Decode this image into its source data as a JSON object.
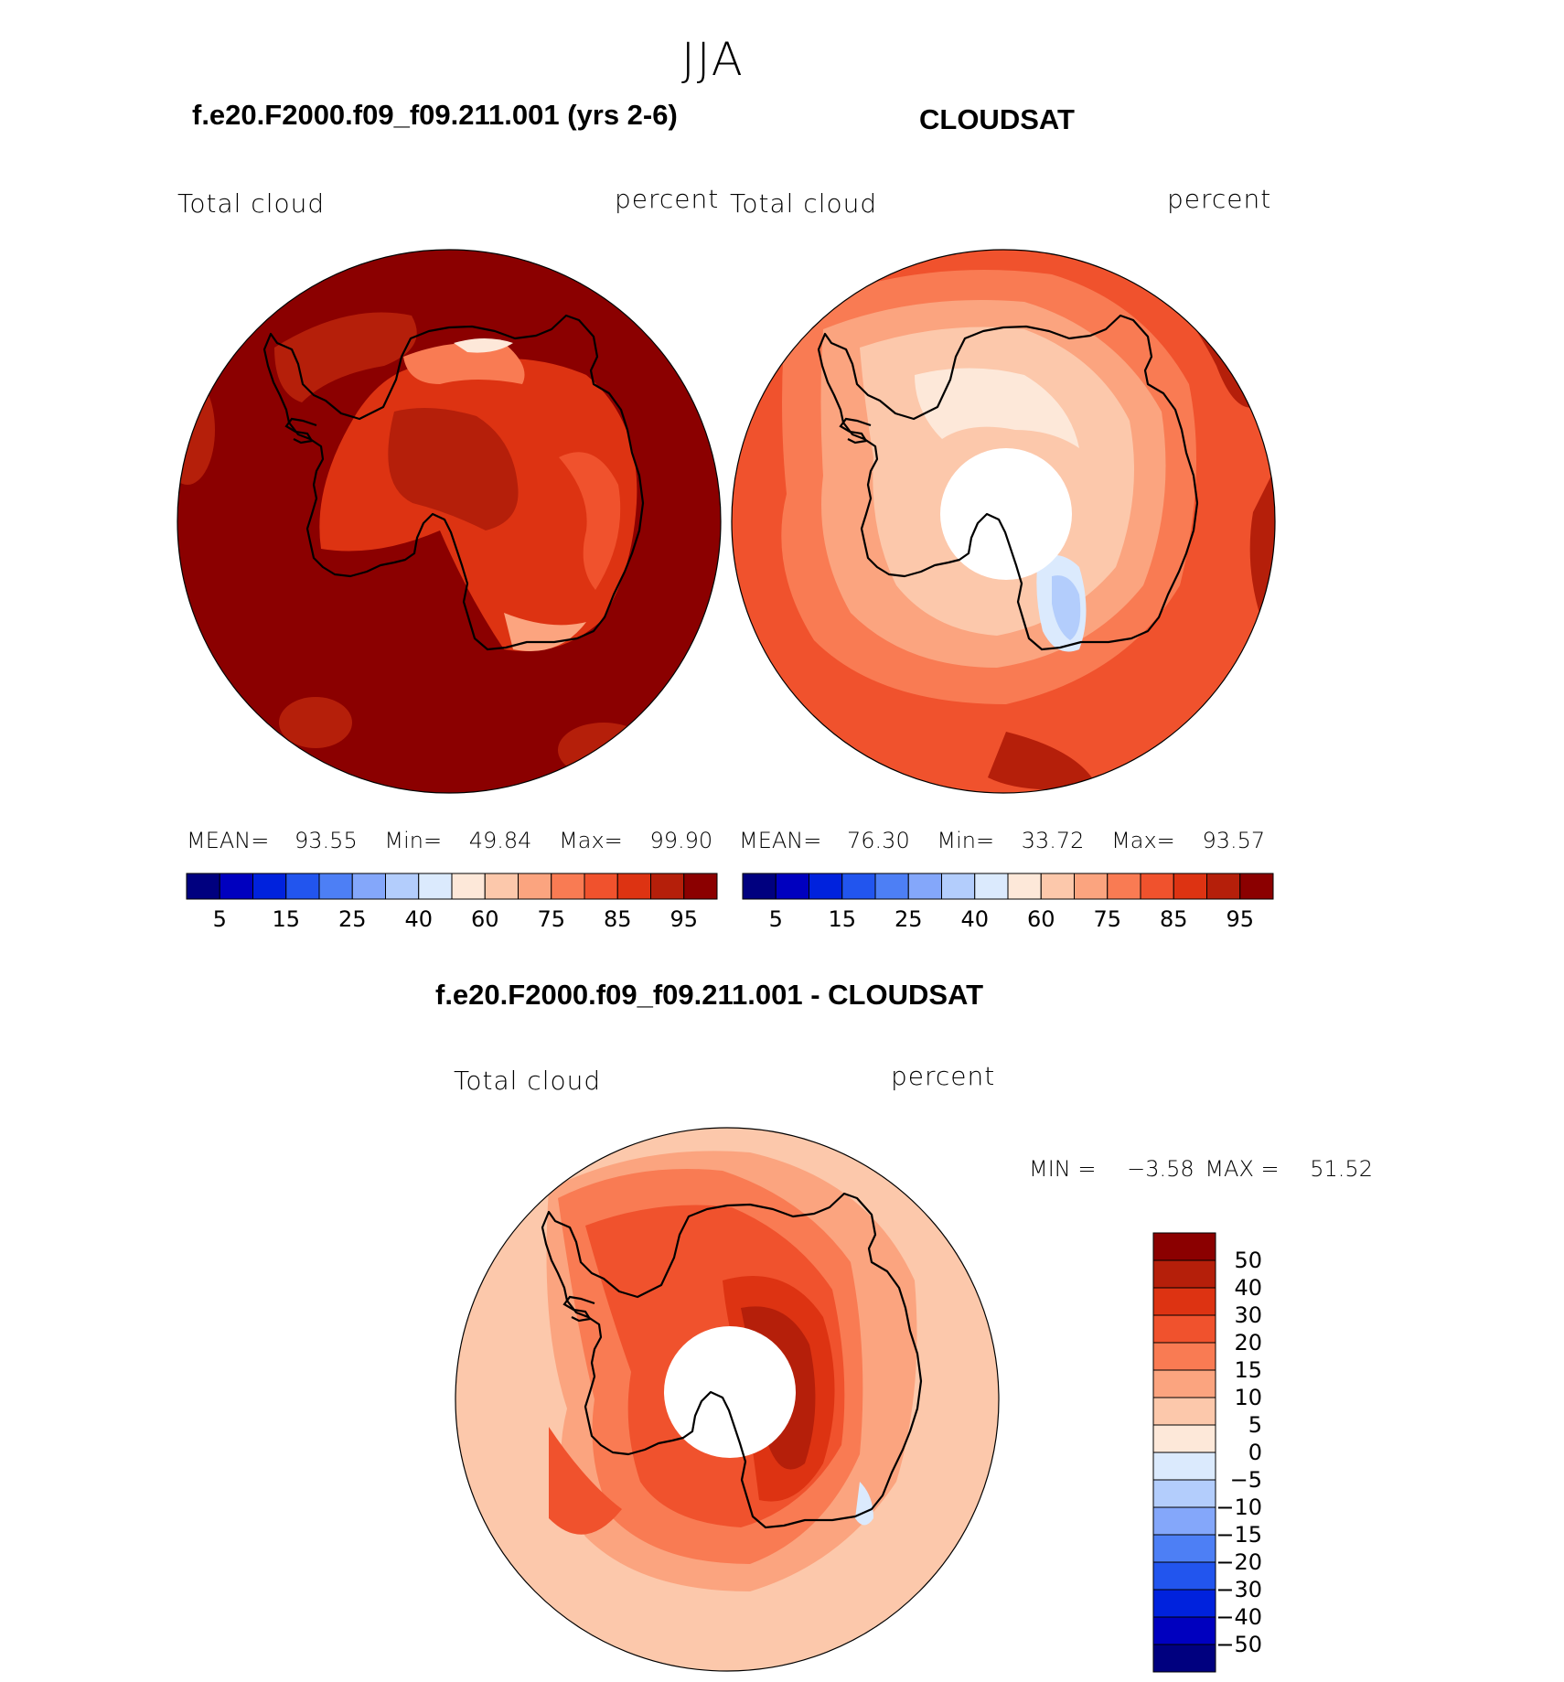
{
  "figure": {
    "season": "JJA",
    "diff_title": "f.e20.F2000.f09_f09.211.001 - CLOUDSAT"
  },
  "panels": [
    {
      "case_title": "f.e20.F2000.f09_f09.211.001 (yrs 2-6)",
      "variable": "Total cloud",
      "units": "percent",
      "stats": {
        "mean_label": "MEAN=",
        "mean": "93.55",
        "min_label": "Min=",
        "min": "49.84",
        "max_label": "Max=",
        "max": "99.90"
      }
    },
    {
      "case_title": "CLOUDSAT",
      "variable": "Total cloud",
      "units": "percent",
      "stats": {
        "mean_label": "MEAN=",
        "mean": "76.30",
        "min_label": "Min=",
        "min": "33.72",
        "max_label": "Max=",
        "max": "93.57"
      }
    },
    {
      "variable": "Total cloud",
      "units": "percent",
      "minmax": {
        "min_label": "MIN =",
        "min": "−3.58",
        "max_label": "MAX =",
        "max": "51.52"
      }
    }
  ],
  "colorbars": {
    "field": {
      "colors": [
        "#00007f",
        "#0000bf",
        "#0022dd",
        "#2255ee",
        "#4d7ff5",
        "#84a7fa",
        "#b3cdfc",
        "#dbeafd",
        "#fde8d9",
        "#fcc8ab",
        "#fba47f",
        "#f97b53",
        "#f0522d",
        "#dd3312",
        "#b51f0a",
        "#8b0000"
      ],
      "tick_labels": [
        "5",
        "15",
        "25",
        "40",
        "60",
        "75",
        "85",
        "95"
      ]
    },
    "diff": {
      "colors": [
        "#8b0000",
        "#b51f0a",
        "#dd3312",
        "#f0522d",
        "#f97b53",
        "#fba47f",
        "#fcc8ab",
        "#fde8d9",
        "#dbeafd",
        "#b3cdfc",
        "#84a7fa",
        "#4d7ff5",
        "#2255ee",
        "#0022dd",
        "#0000bf",
        "#00007f"
      ],
      "tick_labels": [
        "50",
        "40",
        "30",
        "20",
        "15",
        "10",
        "5",
        "0",
        "−5",
        "−10",
        "−15",
        "−20",
        "−30",
        "−40",
        "−50"
      ]
    }
  },
  "map_colors": {
    "p1_base": "#8b0000",
    "p2_base": "#f0522d",
    "p3_base": "#fcc8ab",
    "coast": "#000000"
  }
}
